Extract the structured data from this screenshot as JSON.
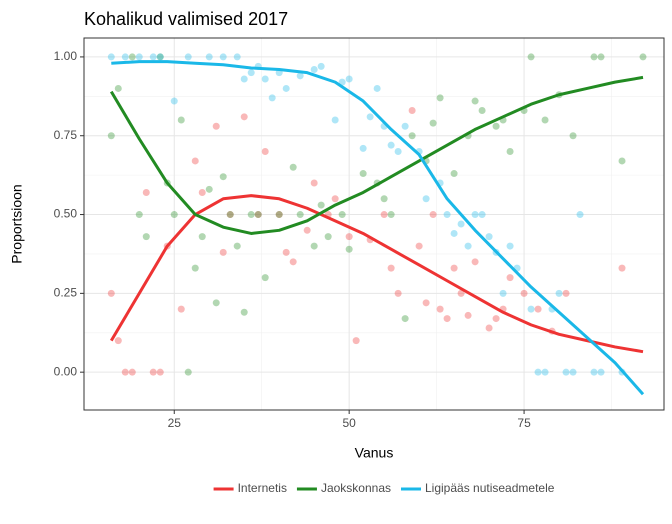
{
  "chart_data": {
    "type": "scatter",
    "title": "Kohalikud valimised 2017",
    "xlabel": "Vanus",
    "ylabel": "Proportsioon",
    "xlim": [
      12.1,
      95
    ],
    "ylim": [
      -0.12,
      1.06
    ],
    "xticks": [
      25,
      50,
      75
    ],
    "yticks": [
      {
        "value": 0,
        "label": "0.00"
      },
      {
        "value": 0.25,
        "label": "0.25"
      },
      {
        "value": 0.5,
        "label": "0.50"
      },
      {
        "value": 0.75,
        "label": "0.75"
      },
      {
        "value": 1,
        "label": "1.00"
      }
    ],
    "x_minor_grid": [
      37.5,
      62.5,
      87.5
    ],
    "y_minor_grid": [
      0.125,
      0.375,
      0.625,
      0.875
    ],
    "grid": true,
    "legend": "bottom",
    "series": [
      {
        "name": "Internetis",
        "color": "#ee3333",
        "x": [
          16,
          17,
          18,
          19,
          21,
          22,
          23,
          24,
          26,
          28,
          29,
          31,
          32,
          33,
          35,
          37,
          38,
          40,
          41,
          42,
          44,
          45,
          47,
          48,
          50,
          51,
          53,
          55,
          56,
          57,
          59,
          60,
          61,
          62,
          63,
          64,
          65,
          66,
          67,
          68,
          70,
          71,
          72,
          73,
          75,
          77,
          79,
          81,
          89
        ],
        "values": [
          0.25,
          0.1,
          0,
          0,
          0.57,
          0,
          0,
          0.4,
          0.2,
          0.67,
          0.57,
          0.78,
          0.38,
          0.5,
          0.81,
          0.5,
          0.7,
          0.5,
          0.38,
          0.35,
          0.45,
          0.6,
          0.5,
          0.55,
          0.43,
          0.1,
          0.42,
          0.5,
          0.33,
          0.25,
          0.83,
          0.4,
          0.22,
          0.5,
          0.2,
          0.17,
          0.33,
          0.25,
          0.18,
          0.35,
          0.14,
          0.17,
          0.2,
          0.3,
          0.25,
          0.2,
          0.13,
          0.25,
          0.33
        ],
        "fit_x": [
          16,
          20,
          24,
          28,
          32,
          36,
          40,
          44,
          48,
          52,
          56,
          60,
          64,
          68,
          72,
          76,
          80,
          84,
          88,
          92
        ],
        "fit_values": [
          0.1,
          0.25,
          0.4,
          0.5,
          0.55,
          0.56,
          0.55,
          0.52,
          0.48,
          0.44,
          0.39,
          0.34,
          0.29,
          0.24,
          0.19,
          0.15,
          0.12,
          0.1,
          0.08,
          0.065
        ]
      },
      {
        "name": "Jaokskonnas",
        "color": "#228b22",
        "x": [
          16,
          17,
          19,
          20,
          21,
          23,
          24,
          25,
          26,
          27,
          28,
          29,
          30,
          31,
          32,
          33,
          34,
          35,
          36,
          37,
          38,
          40,
          42,
          43,
          45,
          46,
          47,
          49,
          50,
          52,
          54,
          55,
          56,
          58,
          59,
          61,
          62,
          63,
          65,
          67,
          68,
          69,
          71,
          72,
          73,
          75,
          76,
          78,
          80,
          82,
          85,
          86,
          89,
          92
        ],
        "values": [
          0.75,
          0.9,
          1,
          0.5,
          0.43,
          1,
          0.6,
          0.5,
          0.8,
          0,
          0.33,
          0.43,
          0.58,
          0.22,
          0.62,
          0.5,
          0.4,
          0.19,
          0.5,
          0.5,
          0.3,
          0.5,
          0.65,
          0.5,
          0.4,
          0.53,
          0.43,
          0.5,
          0.39,
          0.63,
          0.6,
          0.55,
          0.5,
          0.17,
          0.75,
          0.67,
          0.79,
          0.87,
          0.63,
          0.75,
          0.86,
          0.83,
          0.78,
          0.8,
          0.7,
          0.83,
          1,
          0.8,
          0.88,
          0.75,
          1,
          1,
          0.67,
          1
        ],
        "fit_x": [
          16,
          20,
          24,
          28,
          32,
          36,
          40,
          44,
          48,
          52,
          56,
          60,
          64,
          68,
          72,
          76,
          80,
          84,
          88,
          92
        ],
        "fit_values": [
          0.89,
          0.74,
          0.6,
          0.5,
          0.46,
          0.44,
          0.45,
          0.48,
          0.53,
          0.57,
          0.62,
          0.67,
          0.72,
          0.77,
          0.81,
          0.85,
          0.88,
          0.9,
          0.92,
          0.935
        ]
      },
      {
        "name": "Ligipääs nutiseadmetele",
        "color": "#1ab8e8",
        "x": [
          16,
          18,
          20,
          22,
          23,
          25,
          27,
          30,
          32,
          34,
          35,
          36,
          37,
          38,
          39,
          40,
          41,
          43,
          45,
          46,
          48,
          49,
          50,
          52,
          53,
          54,
          55,
          56,
          57,
          58,
          60,
          61,
          63,
          64,
          65,
          66,
          67,
          68,
          69,
          70,
          71,
          72,
          73,
          74,
          76,
          77,
          78,
          79,
          80,
          81,
          82,
          83,
          85,
          86,
          89
        ],
        "values": [
          1,
          1,
          1,
          1,
          1,
          0.86,
          1,
          1,
          1,
          1,
          0.93,
          0.95,
          0.97,
          0.93,
          0.87,
          0.95,
          0.9,
          0.94,
          0.96,
          0.97,
          0.8,
          0.92,
          0.93,
          0.71,
          0.81,
          0.9,
          0.78,
          0.72,
          0.7,
          0.78,
          0.7,
          0.55,
          0.6,
          0.5,
          0.44,
          0.47,
          0.4,
          0.5,
          0.5,
          0.43,
          0.38,
          0.25,
          0.4,
          0.33,
          0.2,
          0,
          0,
          0.2,
          0.25,
          0,
          0,
          0.5,
          0,
          0,
          0
        ],
        "fit_x": [
          16,
          20,
          24,
          28,
          32,
          36,
          40,
          44,
          48,
          52,
          56,
          60,
          64,
          68,
          72,
          76,
          80,
          84,
          88,
          92
        ],
        "fit_values": [
          0.98,
          0.985,
          0.985,
          0.98,
          0.975,
          0.965,
          0.96,
          0.95,
          0.92,
          0.86,
          0.77,
          0.69,
          0.55,
          0.45,
          0.36,
          0.27,
          0.19,
          0.11,
          0.03,
          -0.07
        ]
      }
    ]
  }
}
